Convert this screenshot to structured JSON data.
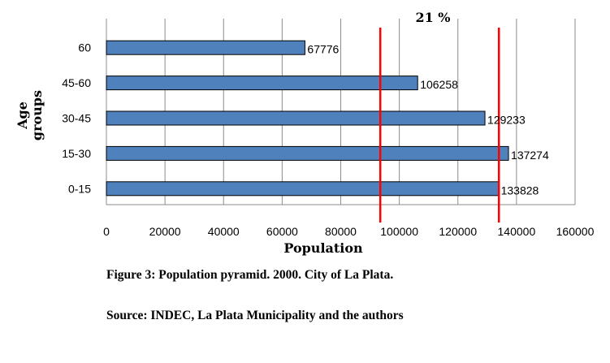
{
  "chart_data": {
    "type": "bar",
    "orientation": "horizontal",
    "categories": [
      "60",
      "45-60",
      "30-45",
      "15-30",
      "0-15"
    ],
    "values": [
      67776,
      106258,
      129233,
      137274,
      133828
    ],
    "xlabel": "Population",
    "ylabel": "Age groups",
    "xlim": [
      0,
      160000
    ],
    "xticks": [
      0,
      20000,
      40000,
      60000,
      80000,
      100000,
      120000,
      140000,
      160000
    ],
    "grid": "vertical",
    "bar_color": "#4F81BD",
    "bar_edge_color": "#000000",
    "annotation": {
      "label": "21 %",
      "lines_x": [
        93500,
        134000
      ],
      "line_color": "#FF0000"
    }
  },
  "caption": {
    "figure": "Figure 3: Population pyramid. 2000. City of La Plata.",
    "source": "Source: INDEC, La Plata Municipality and the authors"
  }
}
